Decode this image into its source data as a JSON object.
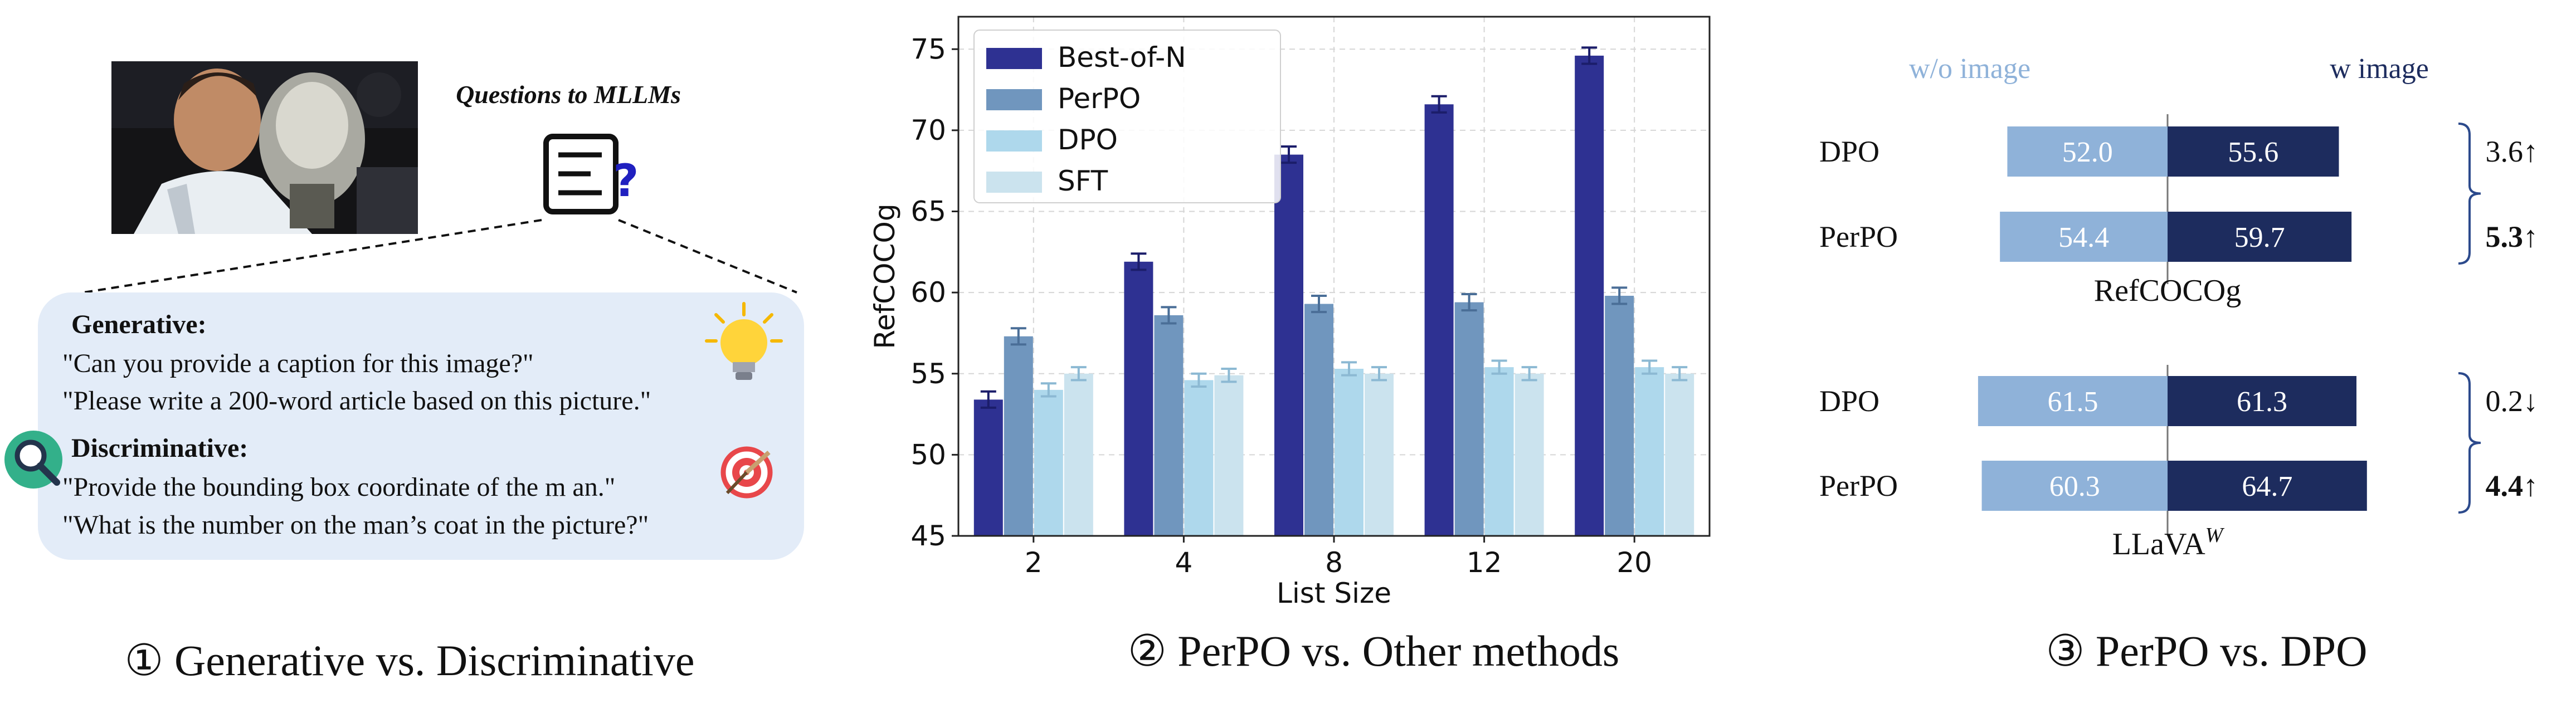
{
  "panel1": {
    "questions_title": "Questions to MLLMs",
    "generative_heading": "Generative:",
    "generative_q1": "\"Can you provide a caption for this image?\"",
    "generative_q2": "\"Please write a 200-word article based on this picture.\"",
    "discriminative_heading": "Discriminative:",
    "discriminative_q1": "\"Provide the bounding box coordinate of the m an.\"",
    "discriminative_q2": "\"What is the number on the man’s coat in the picture?\"",
    "caption": "① Generative vs. Discriminative",
    "colors": {
      "box_fill": "#e3ecf8",
      "box_stroke": "#e3ecf8"
    },
    "icons": [
      "photo-of-tennis-player",
      "document-question-icon",
      "lightbulb-icon",
      "magnifier-icon",
      "target-icon"
    ]
  },
  "chart_data": [
    {
      "type": "bar",
      "categories": [
        "2",
        "4",
        "8",
        "12",
        "20"
      ],
      "xlabel": "List Size",
      "ylabel": "RefCOCOg",
      "ylim": [
        45,
        77
      ],
      "yticks": [
        45,
        50,
        55,
        60,
        65,
        70,
        75
      ],
      "grid": true,
      "legend_position": "top-left",
      "series": [
        {
          "name": "Best-of-N",
          "color": "#2e3192",
          "values": [
            53.4,
            61.9,
            68.5,
            71.6,
            74.6
          ],
          "errors": [
            0.5,
            0.5,
            0.5,
            0.5,
            0.5
          ]
        },
        {
          "name": "PerPO",
          "color": "#7096be",
          "values": [
            57.3,
            58.6,
            59.3,
            59.4,
            59.8
          ],
          "errors": [
            0.5,
            0.5,
            0.5,
            0.5,
            0.5
          ]
        },
        {
          "name": "DPO",
          "color": "#aed8ec",
          "values": [
            54.0,
            54.6,
            55.3,
            55.4,
            55.4
          ],
          "errors": [
            0.4,
            0.4,
            0.4,
            0.4,
            0.4
          ]
        },
        {
          "name": "SFT",
          "color": "#cbe3ee",
          "values": [
            55.0,
            54.9,
            55.0,
            55.0,
            55.0
          ],
          "errors": [
            0.4,
            0.4,
            0.4,
            0.4,
            0.4
          ]
        }
      ]
    },
    {
      "type": "bar",
      "orientation": "diverging-horizontal",
      "left_header": "w/o image",
      "right_header": "w image",
      "left_color": "#8fb2d9",
      "right_color": "#1d2c5e",
      "groups": [
        {
          "name": "RefCOCOg",
          "rows": [
            {
              "label": "DPO",
              "without_image": 52.0,
              "with_image": 55.6,
              "delta": "3.6↑",
              "delta_bold": false
            },
            {
              "label": "PerPO",
              "without_image": 54.4,
              "with_image": 59.7,
              "delta": "5.3↑",
              "delta_bold": true
            }
          ]
        },
        {
          "name": "LLaVA",
          "name_superscript": "W",
          "rows": [
            {
              "label": "DPO",
              "without_image": 61.5,
              "with_image": 61.3,
              "delta": "0.2↓",
              "delta_bold": false
            },
            {
              "label": "PerPO",
              "without_image": 60.3,
              "with_image": 64.7,
              "delta": "4.4↑",
              "delta_bold": true
            }
          ]
        }
      ]
    }
  ],
  "panel2": {
    "caption": "② PerPO vs. Other methods"
  },
  "panel3": {
    "caption": "③ PerPO vs. DPO"
  }
}
